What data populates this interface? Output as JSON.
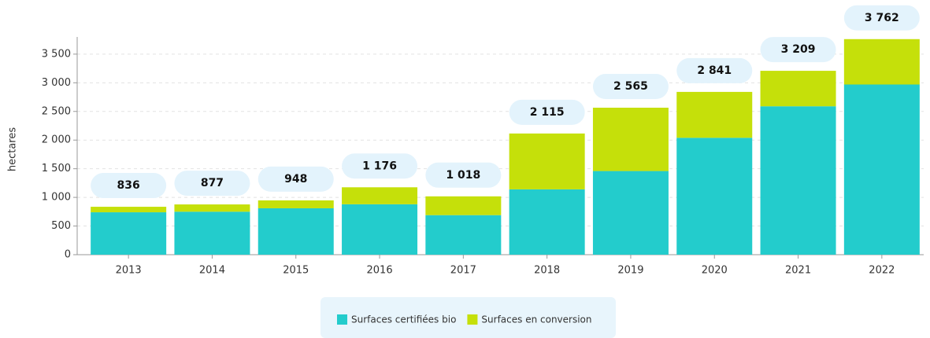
{
  "chart_data": {
    "type": "stacked_bar",
    "y_label": "hectares",
    "categories": [
      "2013",
      "2014",
      "2015",
      "2016",
      "2017",
      "2018",
      "2019",
      "2020",
      "2021",
      "2022"
    ],
    "series": [
      {
        "name": "Surfaces certifiées bio",
        "color": "#23cccc",
        "values": [
          740,
          750,
          810,
          880,
          690,
          1140,
          1460,
          2040,
          2590,
          2970
        ]
      },
      {
        "name": "Surfaces en conversion",
        "color": "#c5e00a",
        "values": [
          96,
          127,
          138,
          296,
          328,
          975,
          1105,
          801,
          619,
          792
        ]
      }
    ],
    "totals": {
      "values": [
        836,
        877,
        948,
        1176,
        1018,
        2115,
        2565,
        2841,
        3209,
        3762
      ],
      "value_labels": [
        "836",
        "877",
        "948",
        "1 176",
        "1 018",
        "2 115",
        "2 565",
        "2 841",
        "3 209",
        "3 762"
      ]
    },
    "ylim": [
      0,
      3800
    ],
    "yticks": [
      0,
      500,
      {
        "value": 1000,
        "label": "1 000"
      },
      {
        "value": 1500,
        "label": "1 500"
      },
      {
        "value": 2000,
        "label": "2 000"
      },
      {
        "value": 2500,
        "label": "2 500"
      },
      {
        "value": 3000,
        "label": "3 000"
      },
      {
        "value": 3500,
        "label": "3 500"
      }
    ],
    "grid": true,
    "legend": "bottom"
  }
}
